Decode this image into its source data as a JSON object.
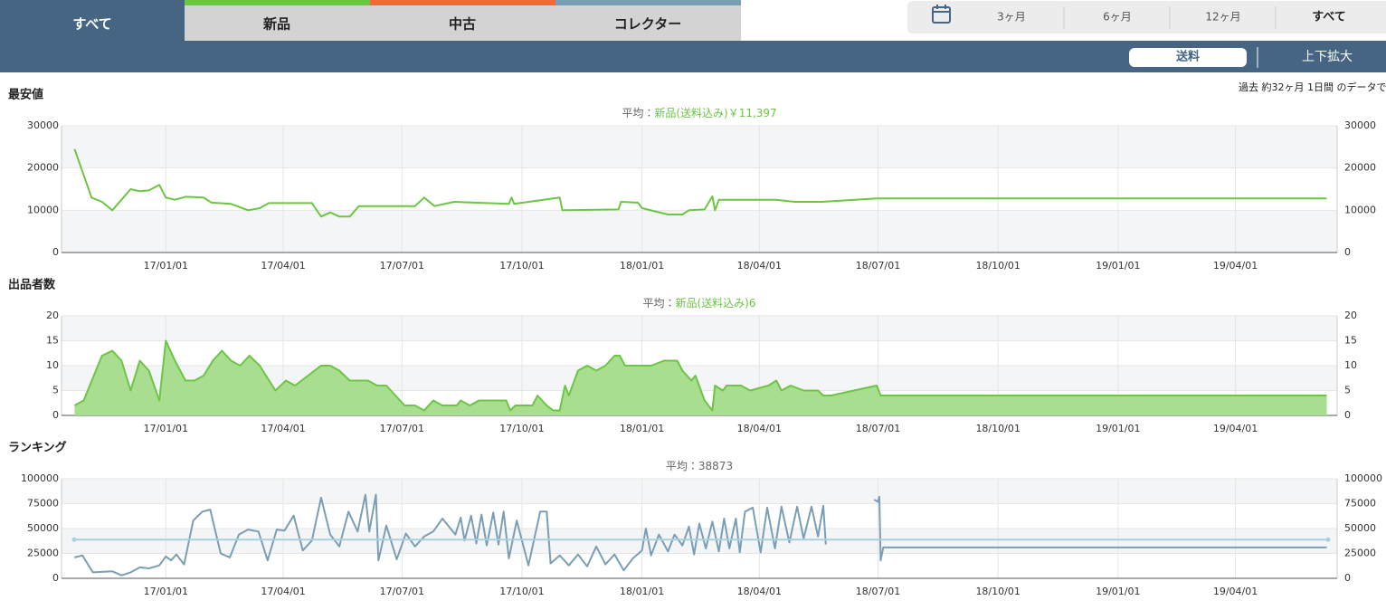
{
  "tabs": [
    "すべて",
    "新品",
    "中古",
    "コレクター"
  ],
  "ranges": [
    "3ヶ月",
    "6ヶ月",
    "12ヶ月",
    "すべて"
  ],
  "buttons": [
    "送料",
    "上下拡大"
  ],
  "period_note": "過去 約32ヶ月 1日間 のデータで",
  "chart_data": [
    {
      "type": "line",
      "title": "最安値",
      "average_prefix": "平均：",
      "average_text": "新品(送料込み)￥11,397",
      "xlim": [
        "16/10/13",
        "19/06/18"
      ],
      "xticks": [
        "17/01/01",
        "17/04/01",
        "17/07/01",
        "17/10/01",
        "18/01/01",
        "18/04/01",
        "18/07/01",
        "18/10/01",
        "19/01/01",
        "19/04/01"
      ],
      "ylim": [
        0,
        30000
      ],
      "yticks": [
        0,
        10000,
        20000,
        30000
      ],
      "grid": true,
      "x": [
        "16/10/23",
        "16/11/05",
        "16/11/13",
        "16/11/21",
        "16/11/28",
        "16/12/05",
        "16/12/12",
        "16/12/19",
        "16/12/27",
        "17/01/01",
        "17/01/08",
        "17/01/16",
        "17/01/30",
        "17/02/05",
        "17/02/20",
        "17/03/05",
        "17/03/14",
        "17/03/21",
        "17/04/23",
        "17/04/30",
        "17/05/07",
        "17/05/14",
        "17/05/22",
        "17/05/29",
        "17/07/11",
        "17/07/18",
        "17/07/26",
        "17/08/10",
        "17/09/21",
        "17/09/23",
        "17/09/25",
        "17/10/30",
        "17/11/01",
        "17/12/14",
        "17/12/16",
        "17/12/29",
        "18/01/01",
        "18/01/21",
        "18/02/01",
        "18/02/06",
        "18/02/18",
        "18/02/24",
        "18/02/26",
        "18/03/01",
        "18/04/14",
        "18/04/28",
        "18/05/19",
        "18/06/30",
        "19/06/10"
      ],
      "series": [
        {
          "color": "#6cc644",
          "values": [
            24500,
            13000,
            12000,
            10000,
            12500,
            15000,
            14500,
            14700,
            16000,
            13000,
            12500,
            13200,
            13000,
            11800,
            11500,
            10000,
            10500,
            11700,
            11700,
            8500,
            9500,
            8500,
            8500,
            11000,
            11000,
            13000,
            11000,
            12000,
            11500,
            13000,
            11500,
            13000,
            10000,
            10200,
            12000,
            11800,
            10500,
            9000,
            9000,
            10000,
            10200,
            13300,
            10000,
            12500,
            12500,
            12000,
            12000,
            12800,
            12800
          ]
        }
      ]
    },
    {
      "type": "area",
      "title": "出品者数",
      "average_prefix": "平均：",
      "average_text": "新品(送料込み)6",
      "xlim": [
        "16/10/13",
        "19/06/18"
      ],
      "xticks": [
        "17/01/01",
        "17/04/01",
        "17/07/01",
        "17/10/01",
        "18/01/01",
        "18/04/01",
        "18/07/01",
        "18/10/01",
        "19/01/01",
        "19/04/01"
      ],
      "ylim": [
        0,
        20
      ],
      "yticks": [
        0,
        5,
        10,
        15,
        20
      ],
      "grid": true,
      "x": [
        "16/10/23",
        "16/10/30",
        "16/11/13",
        "16/11/21",
        "16/11/28",
        "16/12/05",
        "16/12/12",
        "16/12/19",
        "16/12/27",
        "17/01/01",
        "17/01/08",
        "17/01/16",
        "17/01/23",
        "17/01/30",
        "17/02/06",
        "17/02/13",
        "17/02/20",
        "17/02/27",
        "17/03/06",
        "17/03/14",
        "17/03/26",
        "17/04/03",
        "17/04/10",
        "17/04/30",
        "17/05/07",
        "17/05/14",
        "17/05/22",
        "17/06/05",
        "17/06/12",
        "17/06/19",
        "17/07/03",
        "17/07/11",
        "17/07/18",
        "17/07/25",
        "17/08/01",
        "17/08/12",
        "17/08/15",
        "17/08/22",
        "17/08/29",
        "17/09/19",
        "17/09/22",
        "17/09/26",
        "17/10/09",
        "17/10/13",
        "17/10/20",
        "17/10/25",
        "17/10/30",
        "17/11/03",
        "17/11/06",
        "17/11/13",
        "17/11/20",
        "17/11/27",
        "17/12/04",
        "17/12/11",
        "17/12/15",
        "17/12/19",
        "18/01/08",
        "18/01/18",
        "18/01/28",
        "18/02/01",
        "18/02/08",
        "18/02/11",
        "18/02/18",
        "18/02/24",
        "18/02/26",
        "18/03/04",
        "18/03/07",
        "18/03/18",
        "18/03/25",
        "18/04/08",
        "18/04/14",
        "18/04/18",
        "18/04/25",
        "18/05/05",
        "18/05/16",
        "18/05/20",
        "18/05/26",
        "18/06/30",
        "18/07/03",
        "19/06/10"
      ],
      "series": [
        {
          "color": "#6cc644",
          "fill": "#a9dd8f",
          "values": [
            2,
            3,
            12,
            13,
            11,
            5,
            11,
            9,
            3,
            15,
            11,
            7,
            7,
            8,
            11,
            13,
            11,
            10,
            12,
            10,
            5,
            7,
            6,
            10,
            10,
            9,
            7,
            7,
            6,
            6,
            2,
            2,
            1,
            3,
            2,
            2,
            3,
            2,
            3,
            3,
            1,
            2,
            2,
            4,
            2,
            1,
            1,
            6,
            4,
            9,
            10,
            9,
            10,
            12,
            12,
            10,
            10,
            11,
            11,
            9,
            7,
            8,
            3,
            1,
            6,
            5,
            6,
            6,
            5,
            6,
            7,
            5,
            6,
            5,
            5,
            4,
            4,
            6,
            4,
            4
          ]
        }
      ]
    },
    {
      "type": "line",
      "title": "ランキング",
      "average_prefix": "平均：",
      "average": 38873,
      "average_color": "#a9cfdf",
      "xlim": [
        "16/10/13",
        "19/06/18"
      ],
      "xticks": [
        "17/01/01",
        "17/04/01",
        "17/07/01",
        "17/10/01",
        "18/01/01",
        "18/04/01",
        "18/07/01",
        "18/10/01",
        "19/01/01",
        "19/04/01"
      ],
      "ylim": [
        0,
        100000
      ],
      "yticks": [
        0,
        25000,
        50000,
        75000,
        100000
      ],
      "grid": true,
      "x": [
        "16/10/23",
        "16/10/29",
        "16/11/06",
        "16/11/21",
        "16/11/28",
        "16/12/05",
        "16/12/12",
        "16/12/19",
        "16/12/27",
        "17/01/01",
        "17/01/05",
        "17/01/09",
        "17/01/15",
        "17/01/22",
        "17/01/29",
        "17/02/04",
        "17/02/12",
        "17/02/19",
        "17/02/26",
        "17/03/05",
        "17/03/13",
        "17/03/20",
        "17/03/27",
        "17/04/02",
        "17/04/09",
        "17/04/16",
        "17/04/23",
        "17/04/30",
        "17/05/07",
        "17/05/14",
        "17/05/21",
        "17/05/28",
        "17/06/03",
        "17/06/06",
        "17/06/11",
        "17/06/13",
        "17/06/19",
        "17/06/27",
        "17/07/04",
        "17/07/11",
        "17/07/18",
        "17/07/25",
        "17/08/01",
        "17/08/11",
        "17/08/15",
        "17/08/18",
        "17/08/23",
        "17/08/27",
        "17/08/31",
        "17/09/04",
        "17/09/09",
        "17/09/13",
        "17/09/17",
        "17/09/21",
        "17/09/27",
        "17/10/06",
        "17/10/15",
        "17/10/20",
        "17/10/23",
        "17/10/30",
        "17/11/06",
        "17/11/13",
        "17/11/20",
        "17/11/27",
        "17/12/04",
        "17/12/11",
        "17/12/18",
        "17/12/25",
        "18/01/01",
        "18/01/04",
        "18/01/08",
        "18/01/14",
        "18/01/21",
        "18/01/26",
        "18/02/01",
        "18/02/06",
        "18/02/10",
        "18/02/14",
        "18/02/19",
        "18/02/24",
        "18/03/01",
        "18/03/05",
        "18/03/09",
        "18/03/14",
        "18/03/17",
        "18/03/21",
        "18/03/27",
        "18/04/02",
        "18/04/07",
        "18/04/13",
        "18/04/18",
        "18/04/24",
        "18/04/30",
        "18/05/05",
        "18/05/11",
        "18/05/16",
        "18/05/20",
        "18/05/22",
        "18/06/10",
        "18/06/28",
        "18/07/01",
        "18/07/02",
        "18/07/03",
        "18/07/05",
        "19/06/10"
      ],
      "series": [
        {
          "color": "#7a9fb5",
          "values": [
            21000,
            23000,
            6000,
            7000,
            3000,
            6000,
            11000,
            10000,
            13000,
            22000,
            18000,
            24000,
            14000,
            58000,
            67000,
            69000,
            25000,
            21000,
            44000,
            49000,
            47000,
            18000,
            49000,
            48000,
            63000,
            28000,
            38000,
            81000,
            44000,
            32000,
            67000,
            47000,
            84000,
            47000,
            84000,
            18000,
            53000,
            19000,
            45000,
            32000,
            42000,
            47000,
            60000,
            44000,
            61000,
            38000,
            63000,
            35000,
            64000,
            33000,
            66000,
            34000,
            67000,
            20000,
            58000,
            13000,
            67000,
            67000,
            15000,
            23000,
            13000,
            24000,
            12000,
            32000,
            14000,
            24000,
            8000,
            20000,
            28000,
            50000,
            23000,
            44000,
            27000,
            44000,
            33000,
            52000,
            24000,
            55000,
            30000,
            57000,
            27000,
            60000,
            30000,
            60000,
            26000,
            67000,
            71000,
            26000,
            71000,
            30000,
            72000,
            36000,
            72000,
            40000,
            72000,
            42000,
            73000,
            34000,
            null,
            79000,
            77000,
            82000,
            18000,
            31000,
            31000
          ]
        }
      ]
    }
  ]
}
